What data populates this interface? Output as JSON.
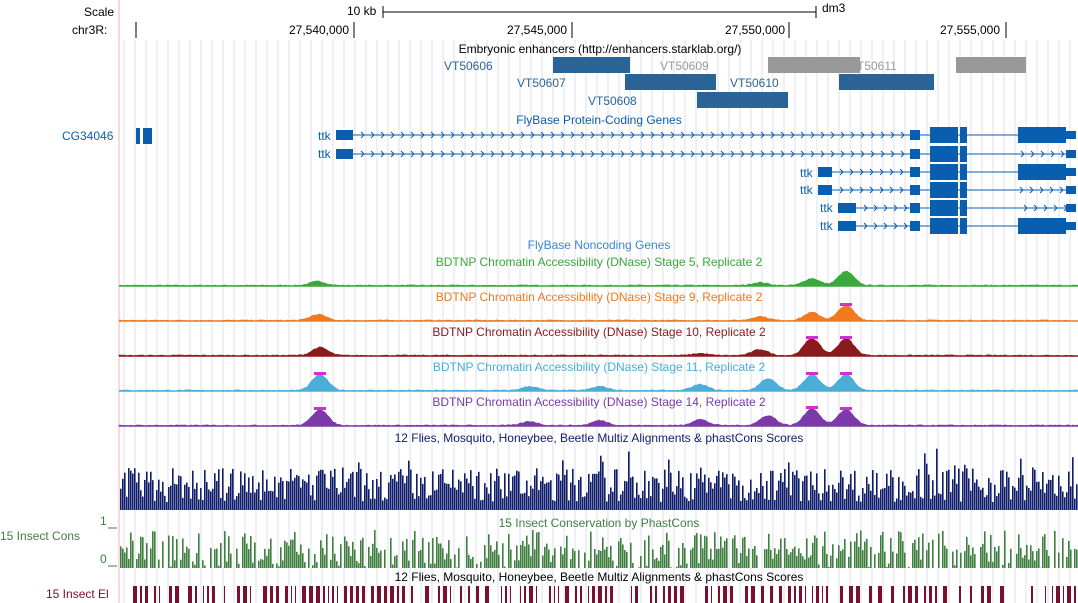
{
  "ruler": {
    "scale_label": "Scale",
    "chrom_label": "chr3R:",
    "scale_bar_label": "10 kb",
    "assembly": "dm3",
    "positions": [
      "27,540,000",
      "27,545,000",
      "27,550,000",
      "27,555,000"
    ]
  },
  "tracks": {
    "enhancers": {
      "title": "Embryonic enhancers (http://enhancers.starklab.org/)",
      "items": [
        {
          "name": "VT50606",
          "color": "#2a6496",
          "active": true
        },
        {
          "name": "VT50607",
          "color": "#2a6496",
          "active": true
        },
        {
          "name": "VT50608",
          "color": "#2a6496",
          "active": true
        },
        {
          "name": "VT50609",
          "color": "#999999",
          "active": false
        },
        {
          "name": "VT50610",
          "color": "#2a6496",
          "active": true
        },
        {
          "name": "VT50611",
          "color": "#999999",
          "active": false
        }
      ]
    },
    "coding_genes": {
      "title": "FlyBase Protein-Coding Genes",
      "color": "#0a5eb0",
      "left_gene": "CG34046",
      "transcripts": [
        "ttk",
        "ttk",
        "ttk",
        "ttk",
        "ttk",
        "ttk"
      ]
    },
    "noncoding": {
      "title": "FlyBase Noncoding Genes",
      "color": "#3a88d0"
    },
    "dnase": [
      {
        "title": "BDTNP Chromatin Accessibility (DNase) Stage 5, Replicate 2",
        "color": "#3aa83a"
      },
      {
        "title": "BDTNP Chromatin Accessibility (DNase) Stage 9, Replicate 2",
        "color": "#f07a20"
      },
      {
        "title": "BDTNP Chromatin Accessibility (DNase) Stage 10, Replicate 2",
        "color": "#8b1a1a"
      },
      {
        "title": "BDTNP Chromatin Accessibility (DNase) Stage 11, Replicate 2",
        "color": "#4aaed8"
      },
      {
        "title": "BDTNP Chromatin Accessibility (DNase) Stage 14, Replicate 2",
        "color": "#7a3aa8"
      }
    ],
    "multiz": {
      "title": "12 Flies, Mosquito, Honeybee, Beetle Multiz Alignments & phastCons Scores",
      "color": "#0f1d6b"
    },
    "phastcons": {
      "title": "15 Insect Conservation by PhastCons",
      "left_label": "15 Insect Cons",
      "axis_max": "1",
      "axis_min": "0",
      "color": "#3f7f3f"
    },
    "elements": {
      "title": "12 Flies, Mosquito, Honeybee, Beetle Multiz Alignments & phastCons Scores",
      "left_label": "15 Insect El",
      "color": "#7a1030"
    }
  }
}
